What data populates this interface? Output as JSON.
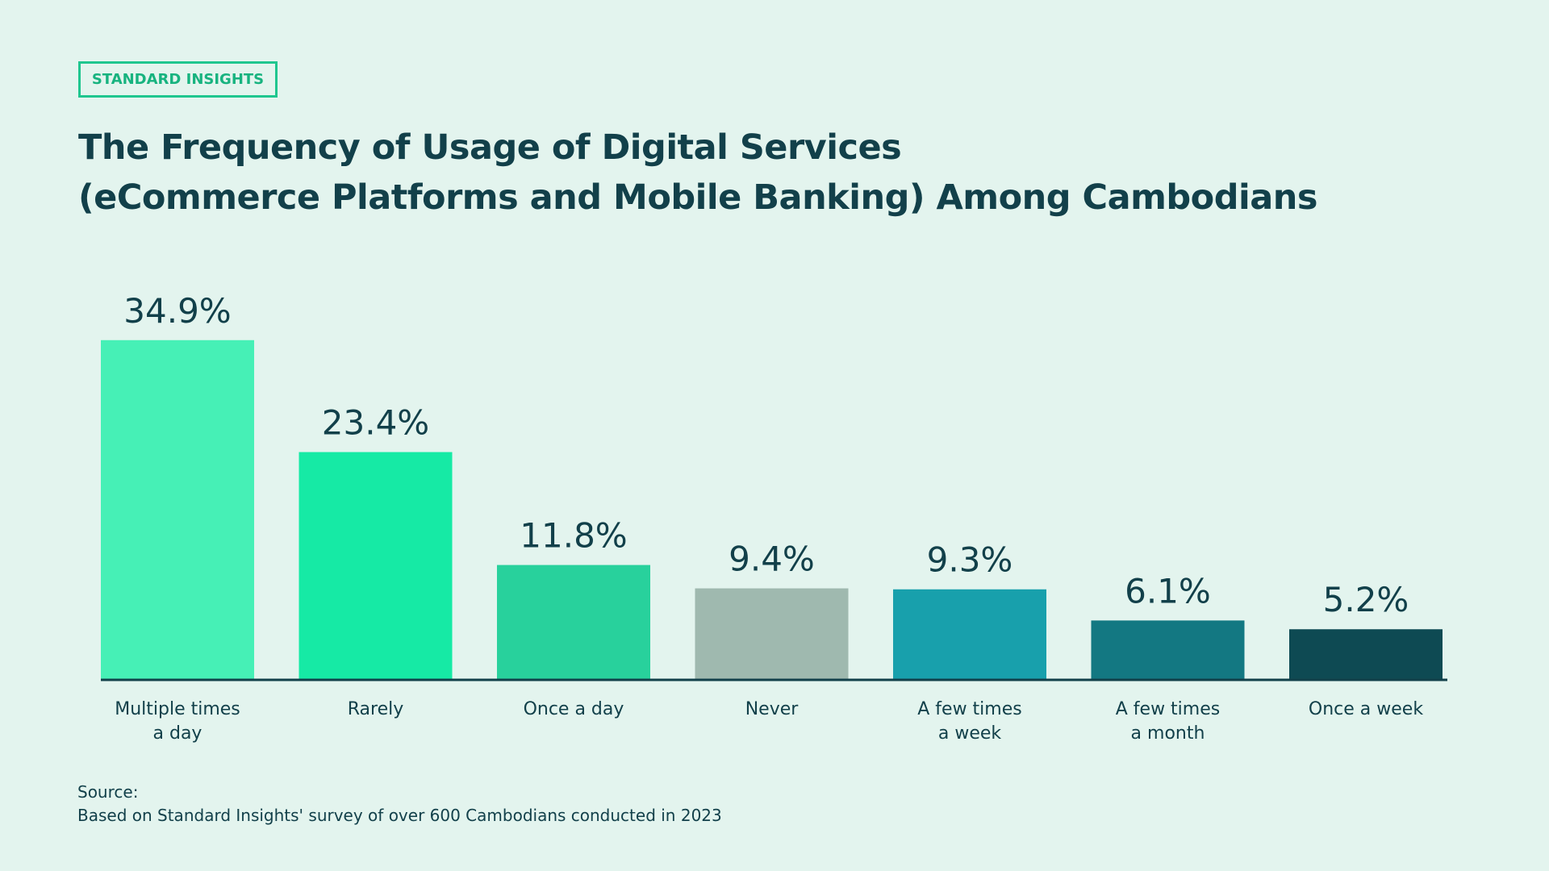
{
  "brand": "STANDARD INSIGHTS",
  "chart_data": {
    "type": "bar",
    "title": "The Frequency of Usage of Digital Services\n(eCommerce Platforms and Mobile Banking) Among Cambodians",
    "categories": [
      "Multiple times\na day",
      "Rarely",
      "Once a day",
      "Never",
      "A few times\na week",
      "A few times\na month",
      "Once a week"
    ],
    "values": [
      34.9,
      23.4,
      11.8,
      9.4,
      9.3,
      6.1,
      5.2
    ],
    "value_labels": [
      "34.9%",
      "23.4%",
      "11.8%",
      "9.4%",
      "9.3%",
      "6.1%",
      "5.2%"
    ],
    "colors": [
      "#46f0b6",
      "#16eaa5",
      "#28d19c",
      "#9fb9af",
      "#18a0ac",
      "#137882",
      "#0e4a53"
    ]
  },
  "source": {
    "label": "Source:",
    "text": "Based on Standard Insights' survey of over 600 Cambodians conducted in 2023"
  }
}
